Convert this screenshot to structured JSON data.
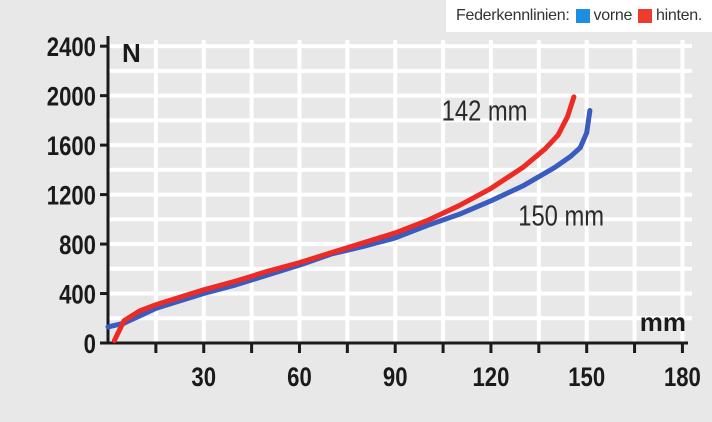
{
  "legend": {
    "title": "Federkennlinien:",
    "items": [
      {
        "label": "vorne",
        "color": "#1e8ee0"
      },
      {
        "label": "hinten.",
        "color": "#ee3b2e"
      }
    ]
  },
  "chart_data": {
    "type": "line",
    "xlabel": "mm",
    "ylabel": "N",
    "xlim": [
      0,
      183
    ],
    "ylim": [
      0,
      2450
    ],
    "x_ticks": [
      30,
      60,
      90,
      120,
      150,
      180
    ],
    "y_ticks": [
      0,
      400,
      800,
      1200,
      1600,
      2000,
      2400
    ],
    "grid": true,
    "legend_position": "top-right",
    "annotations": [
      {
        "text": "142 mm",
        "x": 118,
        "y": 1800
      },
      {
        "text": "150 mm",
        "x": 142,
        "y": 950
      }
    ],
    "series": [
      {
        "name": "vorne",
        "color": "#3a5bc0",
        "x": [
          0,
          5,
          10,
          15,
          20,
          30,
          40,
          50,
          60,
          70,
          80,
          90,
          100,
          110,
          120,
          130,
          140,
          145,
          148,
          150,
          151
        ],
        "y": [
          130,
          160,
          220,
          280,
          320,
          400,
          470,
          550,
          630,
          720,
          780,
          850,
          950,
          1040,
          1150,
          1270,
          1420,
          1510,
          1580,
          1700,
          1880
        ]
      },
      {
        "name": "hinten.",
        "color": "#ee2a24",
        "x": [
          2,
          5,
          10,
          15,
          20,
          30,
          40,
          50,
          60,
          70,
          80,
          90,
          100,
          110,
          120,
          130,
          137,
          141,
          144,
          146
        ],
        "y": [
          20,
          180,
          260,
          310,
          350,
          430,
          500,
          580,
          650,
          730,
          810,
          890,
          990,
          1110,
          1250,
          1420,
          1570,
          1680,
          1830,
          1990
        ]
      }
    ]
  }
}
